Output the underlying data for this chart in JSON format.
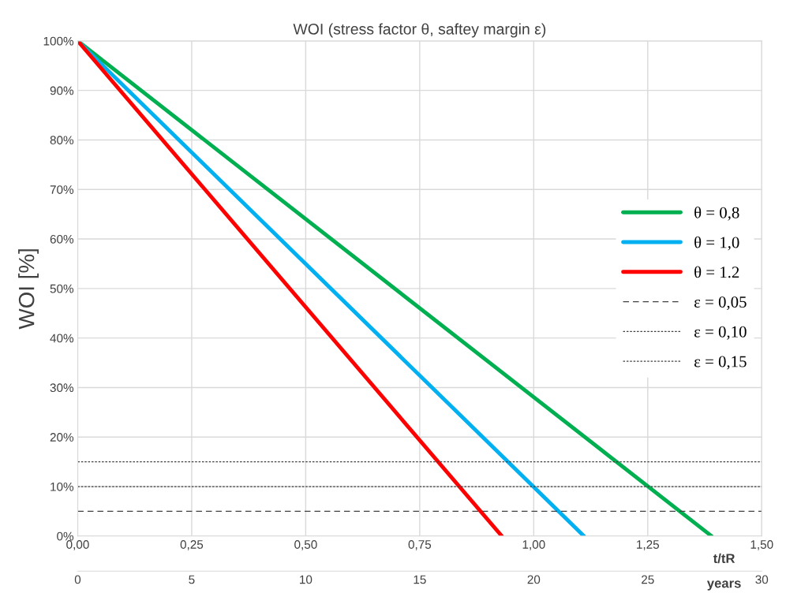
{
  "chart_data": {
    "type": "line",
    "title": "WOI (stress factor θ, saftey margin ε)",
    "xlabel": "t/tR",
    "ylabel": "WOI [%]",
    "x2label": "years",
    "series": [
      {
        "name": "θ = 0,8",
        "color": "#00b050",
        "x": [
          0,
          1.39
        ],
        "values": [
          100,
          0
        ]
      },
      {
        "name": "θ = 1,0",
        "color": "#00b0f0",
        "x": [
          0,
          1.11
        ],
        "values": [
          100,
          0
        ]
      },
      {
        "name": "θ = 1.2",
        "color": "#ff0000",
        "x": [
          0,
          0.93
        ],
        "values": [
          100,
          0
        ]
      },
      {
        "name": "ε = 0,05",
        "color": "#404040",
        "x": [
          0,
          1.5
        ],
        "values": [
          5,
          5
        ],
        "line_style": "dashed"
      },
      {
        "name": "ε = 0,10",
        "color": "#404040",
        "x": [
          0,
          1.5
        ],
        "values": [
          10,
          10
        ],
        "line_style": "dotted"
      },
      {
        "name": "ε = 0,15",
        "color": "#404040",
        "x": [
          0,
          1.5
        ],
        "values": [
          15,
          15
        ],
        "line_style": "dotted"
      }
    ],
    "xlim": [
      0,
      1.5
    ],
    "xticks": [
      {
        "value": 0,
        "label": "0,00"
      },
      {
        "value": 0.25,
        "label": "0,25"
      },
      {
        "value": 0.5,
        "label": "0,50"
      },
      {
        "value": 0.75,
        "label": "0,75"
      },
      {
        "value": 1.0,
        "label": "1,00"
      },
      {
        "value": 1.25,
        "label": "1,25"
      },
      {
        "value": 1.5,
        "label": "1,50"
      }
    ],
    "x2lim": [
      0,
      30
    ],
    "x2ticks": [
      0,
      5,
      10,
      15,
      20,
      25,
      30
    ],
    "ylim": [
      0,
      100
    ],
    "yticks": [
      {
        "value": 0,
        "label": "0%"
      },
      {
        "value": 10,
        "label": "10%"
      },
      {
        "value": 20,
        "label": "20%"
      },
      {
        "value": 30,
        "label": "30%"
      },
      {
        "value": 40,
        "label": "40%"
      },
      {
        "value": 50,
        "label": "50%"
      },
      {
        "value": 60,
        "label": "60%"
      },
      {
        "value": 70,
        "label": "70%"
      },
      {
        "value": 80,
        "label": "80%"
      },
      {
        "value": 90,
        "label": "90%"
      },
      {
        "value": 100,
        "label": "100%"
      }
    ],
    "grid": true,
    "legend": "right",
    "marker": "none",
    "line_style": "solid"
  }
}
